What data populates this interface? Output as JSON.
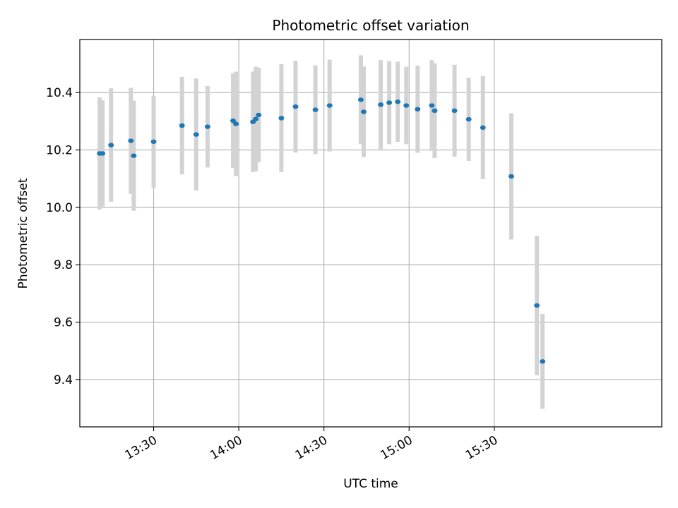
{
  "chart_data": {
    "type": "scatter",
    "title": "Photometric offset variation",
    "xlabel": "UTC time",
    "ylabel": "Photometric offset",
    "x_axis": "time",
    "xlim": [
      "13:04",
      "16:29"
    ],
    "ylim": [
      9.235,
      10.585
    ],
    "x_ticks": [
      "13:30",
      "14:00",
      "14:30",
      "15:00",
      "15:30"
    ],
    "y_ticks": [
      9.4,
      9.6,
      9.8,
      10.0,
      10.2,
      10.4
    ],
    "y_tick_labels": [
      "9.4",
      "9.6",
      "9.8",
      "10.0",
      "10.2",
      "10.4"
    ],
    "grid": true,
    "colors": {
      "point": "#1f77b4",
      "errorbar": "#d3d3d3",
      "grid": "#b0b0b0"
    },
    "points": [
      {
        "t": "13:11",
        "y": 10.188,
        "err": 0.195
      },
      {
        "t": "13:12",
        "y": 10.188,
        "err": 0.185
      },
      {
        "t": "13:15",
        "y": 10.217,
        "err": 0.198
      },
      {
        "t": "13:22",
        "y": 10.232,
        "err": 0.185
      },
      {
        "t": "13:23",
        "y": 10.18,
        "err": 0.192
      },
      {
        "t": "13:30",
        "y": 10.229,
        "err": 0.16
      },
      {
        "t": "13:40",
        "y": 10.285,
        "err": 0.17
      },
      {
        "t": "13:45",
        "y": 10.254,
        "err": 0.195
      },
      {
        "t": "13:49",
        "y": 10.281,
        "err": 0.142
      },
      {
        "t": "13:58",
        "y": 10.302,
        "err": 0.165
      },
      {
        "t": "13:59",
        "y": 10.291,
        "err": 0.182
      },
      {
        "t": "14:05",
        "y": 10.298,
        "err": 0.175
      },
      {
        "t": "14:06",
        "y": 10.308,
        "err": 0.182
      },
      {
        "t": "14:07",
        "y": 10.322,
        "err": 0.165
      },
      {
        "t": "14:15",
        "y": 10.311,
        "err": 0.188
      },
      {
        "t": "14:20",
        "y": 10.351,
        "err": 0.16
      },
      {
        "t": "14:27",
        "y": 10.34,
        "err": 0.155
      },
      {
        "t": "14:32",
        "y": 10.355,
        "err": 0.16
      },
      {
        "t": "14:43",
        "y": 10.375,
        "err": 0.155
      },
      {
        "t": "14:44",
        "y": 10.333,
        "err": 0.158
      },
      {
        "t": "14:50",
        "y": 10.358,
        "err": 0.155
      },
      {
        "t": "14:53",
        "y": 10.365,
        "err": 0.145
      },
      {
        "t": "14:56",
        "y": 10.368,
        "err": 0.14
      },
      {
        "t": "14:59",
        "y": 10.355,
        "err": 0.135
      },
      {
        "t": "15:03",
        "y": 10.342,
        "err": 0.152
      },
      {
        "t": "15:08",
        "y": 10.355,
        "err": 0.158
      },
      {
        "t": "15:09",
        "y": 10.337,
        "err": 0.165
      },
      {
        "t": "15:16",
        "y": 10.337,
        "err": 0.16
      },
      {
        "t": "15:21",
        "y": 10.307,
        "err": 0.145
      },
      {
        "t": "15:26",
        "y": 10.278,
        "err": 0.18
      },
      {
        "t": "15:36",
        "y": 10.108,
        "err": 0.22
      },
      {
        "t": "15:45",
        "y": 9.658,
        "err": 0.243
      },
      {
        "t": "15:47",
        "y": 9.463,
        "err": 0.165
      }
    ]
  }
}
